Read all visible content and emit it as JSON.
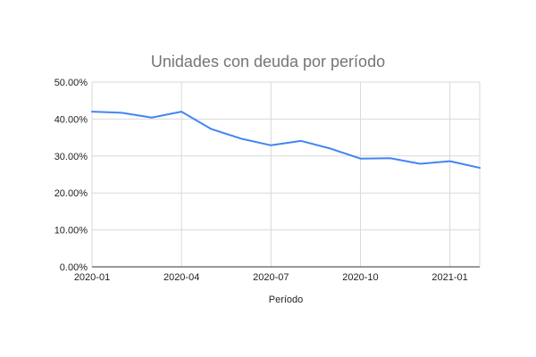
{
  "chart_data": {
    "type": "line",
    "title": "Unidades con deuda por período",
    "xlabel": "Período",
    "ylabel": "",
    "ylim": [
      0,
      50
    ],
    "y_ticks": [
      "0.00%",
      "10.00%",
      "20.00%",
      "30.00%",
      "40.00%",
      "50.00%"
    ],
    "x_ticks": [
      "2020-01",
      "2020-04",
      "2020-07",
      "2020-10",
      "2021-01"
    ],
    "x": [
      "2020-01",
      "2020-02",
      "2020-03",
      "2020-04",
      "2020-05",
      "2020-06",
      "2020-07",
      "2020-08",
      "2020-09",
      "2020-10",
      "2020-11",
      "2020-12",
      "2021-01",
      "2021-02"
    ],
    "series": [
      {
        "values": [
          42.0,
          41.7,
          40.4,
          42.0,
          37.3,
          34.7,
          32.9,
          34.1,
          32.0,
          29.3,
          29.4,
          27.9,
          28.6,
          26.8
        ],
        "color": "#4285f4"
      }
    ],
    "grid": true,
    "legend": "none"
  }
}
